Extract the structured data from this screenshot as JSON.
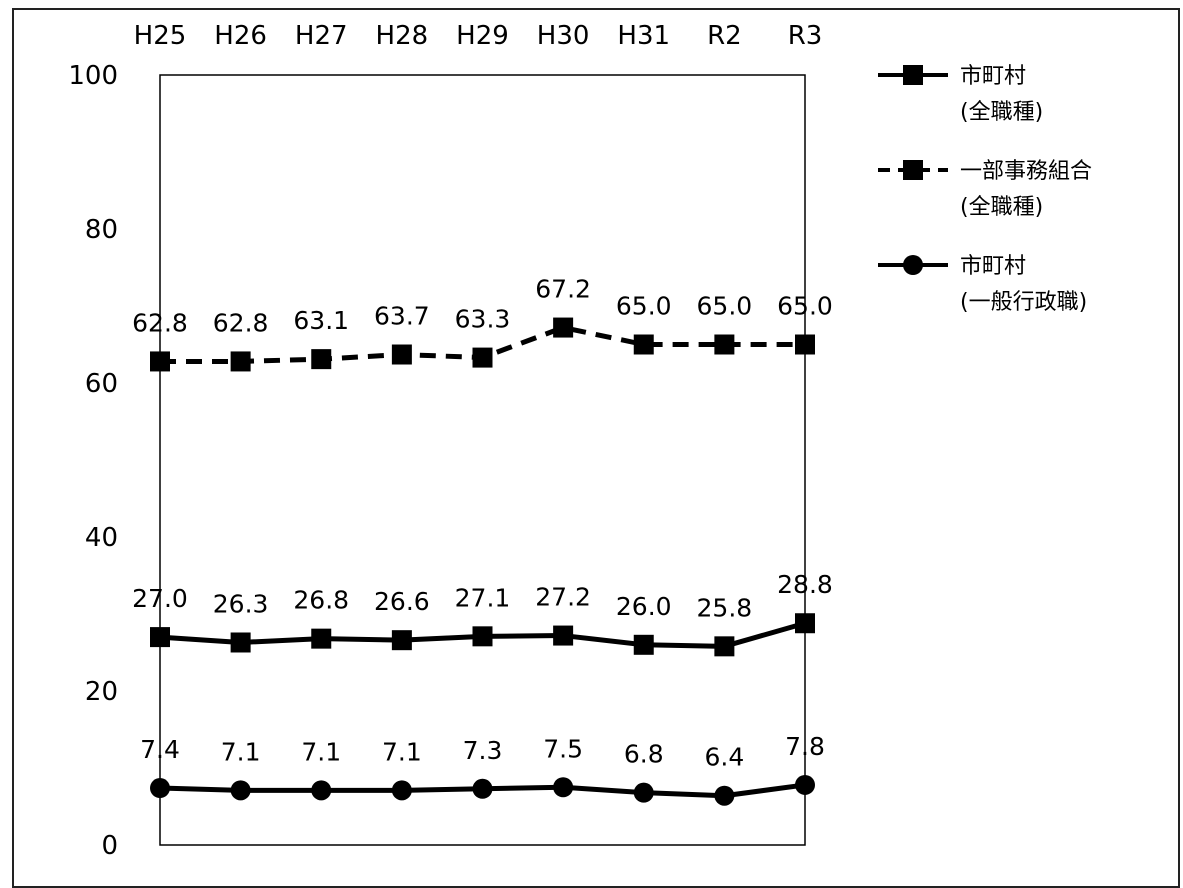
{
  "chart_data": {
    "type": "line",
    "categories": [
      "H25",
      "H26",
      "H27",
      "H28",
      "H29",
      "H30",
      "H31",
      "R2",
      "R3"
    ],
    "ylim": [
      0,
      100
    ],
    "yticks": [
      "0",
      "20",
      "40",
      "60",
      "80",
      "100"
    ],
    "grid": false,
    "legend_position": "right",
    "series": [
      {
        "name": "市町村\n(全職種)",
        "marker": "square",
        "style": "solid",
        "values": [
          27.0,
          26.3,
          26.8,
          26.6,
          27.1,
          27.2,
          26.0,
          25.8,
          28.8
        ],
        "labels": [
          "27.0",
          "26.3",
          "26.8",
          "26.6",
          "27.1",
          "27.2",
          "26.0",
          "25.8",
          "28.8"
        ]
      },
      {
        "name": "一部事務組合\n(全職種)",
        "marker": "square",
        "style": "dashed",
        "values": [
          62.8,
          62.8,
          63.1,
          63.7,
          63.3,
          67.2,
          65.0,
          65.0,
          65.0
        ],
        "labels": [
          "62.8",
          "62.8",
          "63.1",
          "63.7",
          "63.3",
          "67.2",
          "65.0",
          "65.0",
          "65.0"
        ]
      },
      {
        "name": "市町村\n(一般行政職)",
        "marker": "circle",
        "style": "solid",
        "values": [
          7.4,
          7.1,
          7.1,
          7.1,
          7.3,
          7.5,
          6.8,
          6.4,
          7.8
        ],
        "labels": [
          "7.4",
          "7.1",
          "7.1",
          "7.1",
          "7.3",
          "7.5",
          "6.8",
          "6.4",
          "7.8"
        ]
      }
    ],
    "colors": {
      "series": "#000000",
      "axis": "#000000",
      "background": "#ffffff"
    }
  }
}
